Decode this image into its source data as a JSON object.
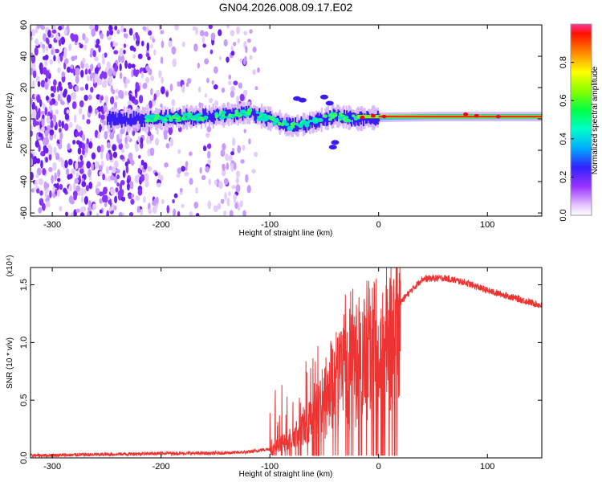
{
  "title": "GN04.2026.008.09.17.E02",
  "chart_data": [
    {
      "type": "heatmap",
      "name": "spectrogram",
      "title": "GN04.2026.008.09.17.E02",
      "xlabel": "Height of straight line (km)",
      "ylabel": "Frequency (Hz)",
      "xlim": [
        -320,
        150
      ],
      "ylim": [
        -62,
        60
      ],
      "xticks": [
        -300,
        -200,
        -100,
        0,
        100
      ],
      "yticks": [
        -60,
        -40,
        -20,
        0,
        20,
        40,
        60
      ],
      "colorbar": {
        "label": "Normalized spectral amplitude",
        "range": [
          0,
          1
        ],
        "ticks": [
          "0.0",
          "0.2",
          "0.4",
          "0.6",
          "0.8"
        ]
      },
      "signal_trace": [
        {
          "x": -250,
          "y": 0
        },
        {
          "x": -210,
          "y": 0
        },
        {
          "x": -150,
          "y": 2
        },
        {
          "x": -120,
          "y": 4
        },
        {
          "x": -100,
          "y": 0
        },
        {
          "x": -80,
          "y": -5
        },
        {
          "x": -60,
          "y": -2
        },
        {
          "x": -40,
          "y": 2
        },
        {
          "x": -20,
          "y": 0
        },
        {
          "x": 0,
          "y": 1
        },
        {
          "x": 50,
          "y": 1.5
        },
        {
          "x": 100,
          "y": 1.5
        },
        {
          "x": 150,
          "y": 1.5
        }
      ],
      "noise_region": [
        -320,
        -110
      ]
    },
    {
      "type": "line",
      "name": "snr",
      "xlabel": "Height of straight line (km)",
      "ylabel": "SNR (10 * v/v)",
      "scale_note": "(x10⁴)",
      "xlim": [
        -320,
        150
      ],
      "ylim": [
        0,
        1.65
      ],
      "xticks": [
        -300,
        -200,
        -100,
        0,
        100
      ],
      "yticks": [
        0.0,
        0.5,
        1.0,
        1.5
      ],
      "ytick_labels": [
        "0.0",
        "0.5",
        "1.0",
        "1.5"
      ],
      "color": "#ee3333",
      "envelope": [
        {
          "x": -320,
          "y": 0.02
        },
        {
          "x": -250,
          "y": 0.03
        },
        {
          "x": -200,
          "y": 0.04
        },
        {
          "x": -150,
          "y": 0.04
        },
        {
          "x": -120,
          "y": 0.05
        },
        {
          "x": -100,
          "y": 0.08
        },
        {
          "x": -80,
          "y": 0.2
        },
        {
          "x": -60,
          "y": 0.45
        },
        {
          "x": -40,
          "y": 0.85
        },
        {
          "x": -20,
          "y": 1.0
        },
        {
          "x": 0,
          "y": 1.1
        },
        {
          "x": 20,
          "y": 1.35
        },
        {
          "x": 40,
          "y": 1.55
        },
        {
          "x": 60,
          "y": 1.56
        },
        {
          "x": 80,
          "y": 1.52
        },
        {
          "x": 100,
          "y": 1.45
        },
        {
          "x": 120,
          "y": 1.4
        },
        {
          "x": 150,
          "y": 1.32
        }
      ]
    }
  ]
}
